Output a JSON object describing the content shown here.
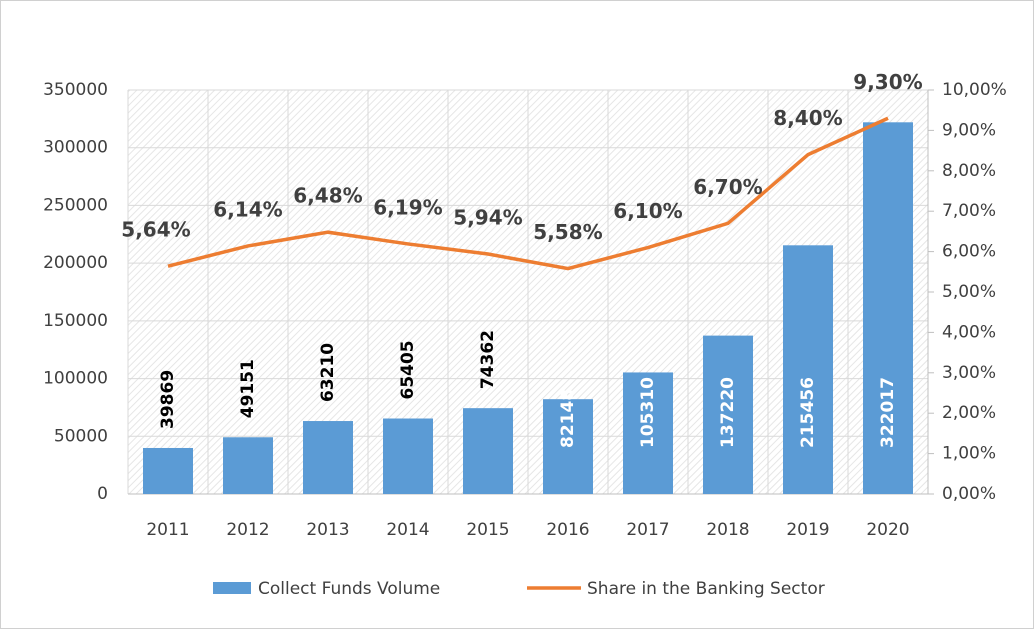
{
  "chart_data": {
    "type": "combo",
    "categories": [
      "2011",
      "2012",
      "2013",
      "2014",
      "2015",
      "2016",
      "2017",
      "2018",
      "2019",
      "2020"
    ],
    "series": [
      {
        "name": "Collect Funds Volume",
        "type": "bar",
        "color": "#5b9bd5",
        "axis": "y",
        "values": [
          39869,
          49151,
          63210,
          65405,
          74362,
          82148,
          105310,
          137220,
          215456,
          322017
        ]
      },
      {
        "name": "Share in the Banking Sector",
        "type": "line",
        "color": "#ed7d31",
        "axis": "y2",
        "values": [
          5.64,
          6.14,
          6.48,
          6.19,
          5.94,
          5.58,
          6.1,
          6.7,
          8.4,
          9.3
        ],
        "value_labels": [
          "5,64%",
          "6,14%",
          "6,48%",
          "6,19%",
          "5,94%",
          "5,58%",
          "6,10%",
          "6,70%",
          "8,40%",
          "9,30%"
        ]
      }
    ],
    "ylim": [
      0,
      350000
    ],
    "yticks": [
      0,
      50000,
      100000,
      150000,
      200000,
      250000,
      300000,
      350000
    ],
    "y2lim": [
      0,
      10
    ],
    "y2ticks": [
      {
        "value": 0,
        "label": "0,00%"
      },
      {
        "value": 1,
        "label": "1,00%"
      },
      {
        "value": 2,
        "label": "2,00%"
      },
      {
        "value": 3,
        "label": "3,00%"
      },
      {
        "value": 4,
        "label": "4,00%"
      },
      {
        "value": 5,
        "label": "5,00%"
      },
      {
        "value": 6,
        "label": "6,00%"
      },
      {
        "value": 7,
        "label": "7,00%"
      },
      {
        "value": 8,
        "label": "8,00%"
      },
      {
        "value": 9,
        "label": "9,00%"
      },
      {
        "value": 10,
        "label": "10,00%"
      }
    ],
    "grid": true,
    "legend": "bottom"
  }
}
